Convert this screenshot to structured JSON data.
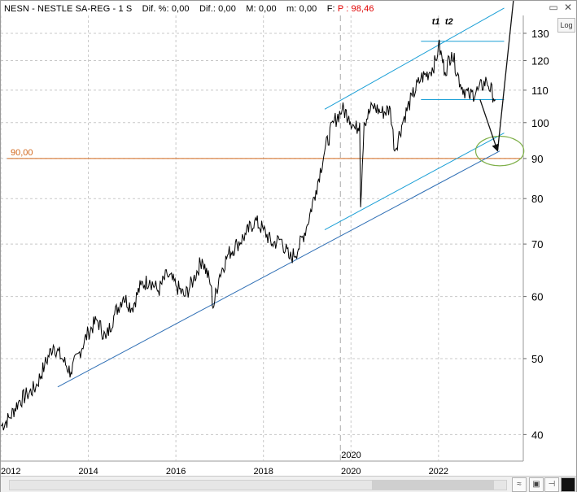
{
  "header": {
    "symbol": "NESN",
    "name": "NESTLE SA-REG",
    "timeframe": "1 S",
    "dif_pct_label": "Dif. %:",
    "dif_pct_value": "0,00",
    "dif_label": "Dif.:",
    "dif_value": "0,00",
    "m_label": "M:",
    "m_value": "0,00",
    "mm_label": "m:",
    "mm_value": "0,00",
    "price_label": "F:",
    "price_text": "P : 98,46"
  },
  "buttons": {
    "log": "Log"
  },
  "colors": {
    "price": "#000000",
    "channel": "#1a9fd6",
    "support": "#2f6fb5",
    "level_90": "#d2691e",
    "ellipse": "#7fb04a",
    "grid": "#c8c8c8",
    "header_price": "#e00000"
  },
  "chart_data": {
    "type": "line",
    "scale": "log",
    "xlim": [
      2012.0,
      2023.9
    ],
    "ylim": [
      37,
      137
    ],
    "y_ticks": [
      40,
      50,
      60,
      70,
      80,
      90,
      100,
      110,
      120,
      130
    ],
    "x_tick_labels": [
      "2012",
      "2014",
      "2016",
      "2018",
      "2020",
      "2022"
    ],
    "x_ticks": [
      2012,
      2014,
      2016,
      2018,
      2020,
      2022
    ],
    "vline_label": "2020",
    "horizontal_level": {
      "value": 90,
      "label": "90,00"
    },
    "annotations": [
      "t1",
      "t2"
    ],
    "series": [
      {
        "values_x": [
          2012.0,
          2012.2,
          2012.4,
          2012.6,
          2012.8,
          2013.0,
          2013.2,
          2013.4,
          2013.6,
          2013.8,
          2014.0,
          2014.2,
          2014.4,
          2014.6,
          2014.8,
          2015.0,
          2015.2,
          2015.4,
          2015.6,
          2015.8,
          2016.0,
          2016.2,
          2016.4,
          2016.6,
          2016.8,
          2016.85,
          2017.0,
          2017.2,
          2017.4,
          2017.6,
          2017.8,
          2018.0,
          2018.2,
          2018.4,
          2018.6,
          2018.8,
          2019.0,
          2019.2,
          2019.4,
          2019.6,
          2019.8,
          2019.95,
          2020.1,
          2020.2,
          2020.22,
          2020.3,
          2020.5,
          2020.7,
          2020.9,
          2021.0,
          2021.2,
          2021.4,
          2021.6,
          2021.8,
          2021.95,
          2022.0,
          2022.15,
          2022.3,
          2022.5,
          2022.7,
          2022.9,
          2023.1,
          2023.3
        ],
        "values_y": [
          41,
          42,
          44,
          45,
          46,
          49,
          52,
          50,
          48,
          51,
          54,
          56,
          53,
          57,
          60,
          58,
          62,
          63,
          61,
          64,
          62,
          60,
          63,
          67,
          62,
          58,
          64,
          68,
          70,
          72,
          75,
          73,
          70,
          71,
          67,
          69,
          74,
          82,
          92,
          100,
          104,
          102,
          98,
          100,
          78,
          100,
          105,
          103,
          104,
          92,
          101,
          108,
          114,
          116,
          120,
          126,
          116,
          123,
          112,
          108,
          110,
          113,
          107
        ]
      }
    ],
    "lines": {
      "channel_upper": {
        "from": [
          2019.4,
          104
        ],
        "to": [
          2023.5,
          140
        ]
      },
      "channel_lower": {
        "from": [
          2019.4,
          73
        ],
        "to": [
          2023.5,
          97
        ]
      },
      "support": {
        "from": [
          2013.3,
          46
        ],
        "to": [
          2023.4,
          92
        ]
      },
      "top_level": {
        "from": [
          2021.6,
          127
        ],
        "to": [
          2023.5,
          127
        ]
      },
      "mid_level": {
        "from": [
          2021.6,
          107
        ],
        "to": [
          2023.5,
          107
        ]
      },
      "arrow_down": {
        "from": [
          2022.95,
          107
        ],
        "to": [
          2023.35,
          92
        ]
      },
      "arrow_up": {
        "from": [
          2023.35,
          92
        ],
        "to": [
          2023.75,
          150
        ]
      }
    },
    "target_ellipse": {
      "center": [
        2023.4,
        92
      ],
      "rx_years": 0.55,
      "ry_value": 4
    }
  }
}
